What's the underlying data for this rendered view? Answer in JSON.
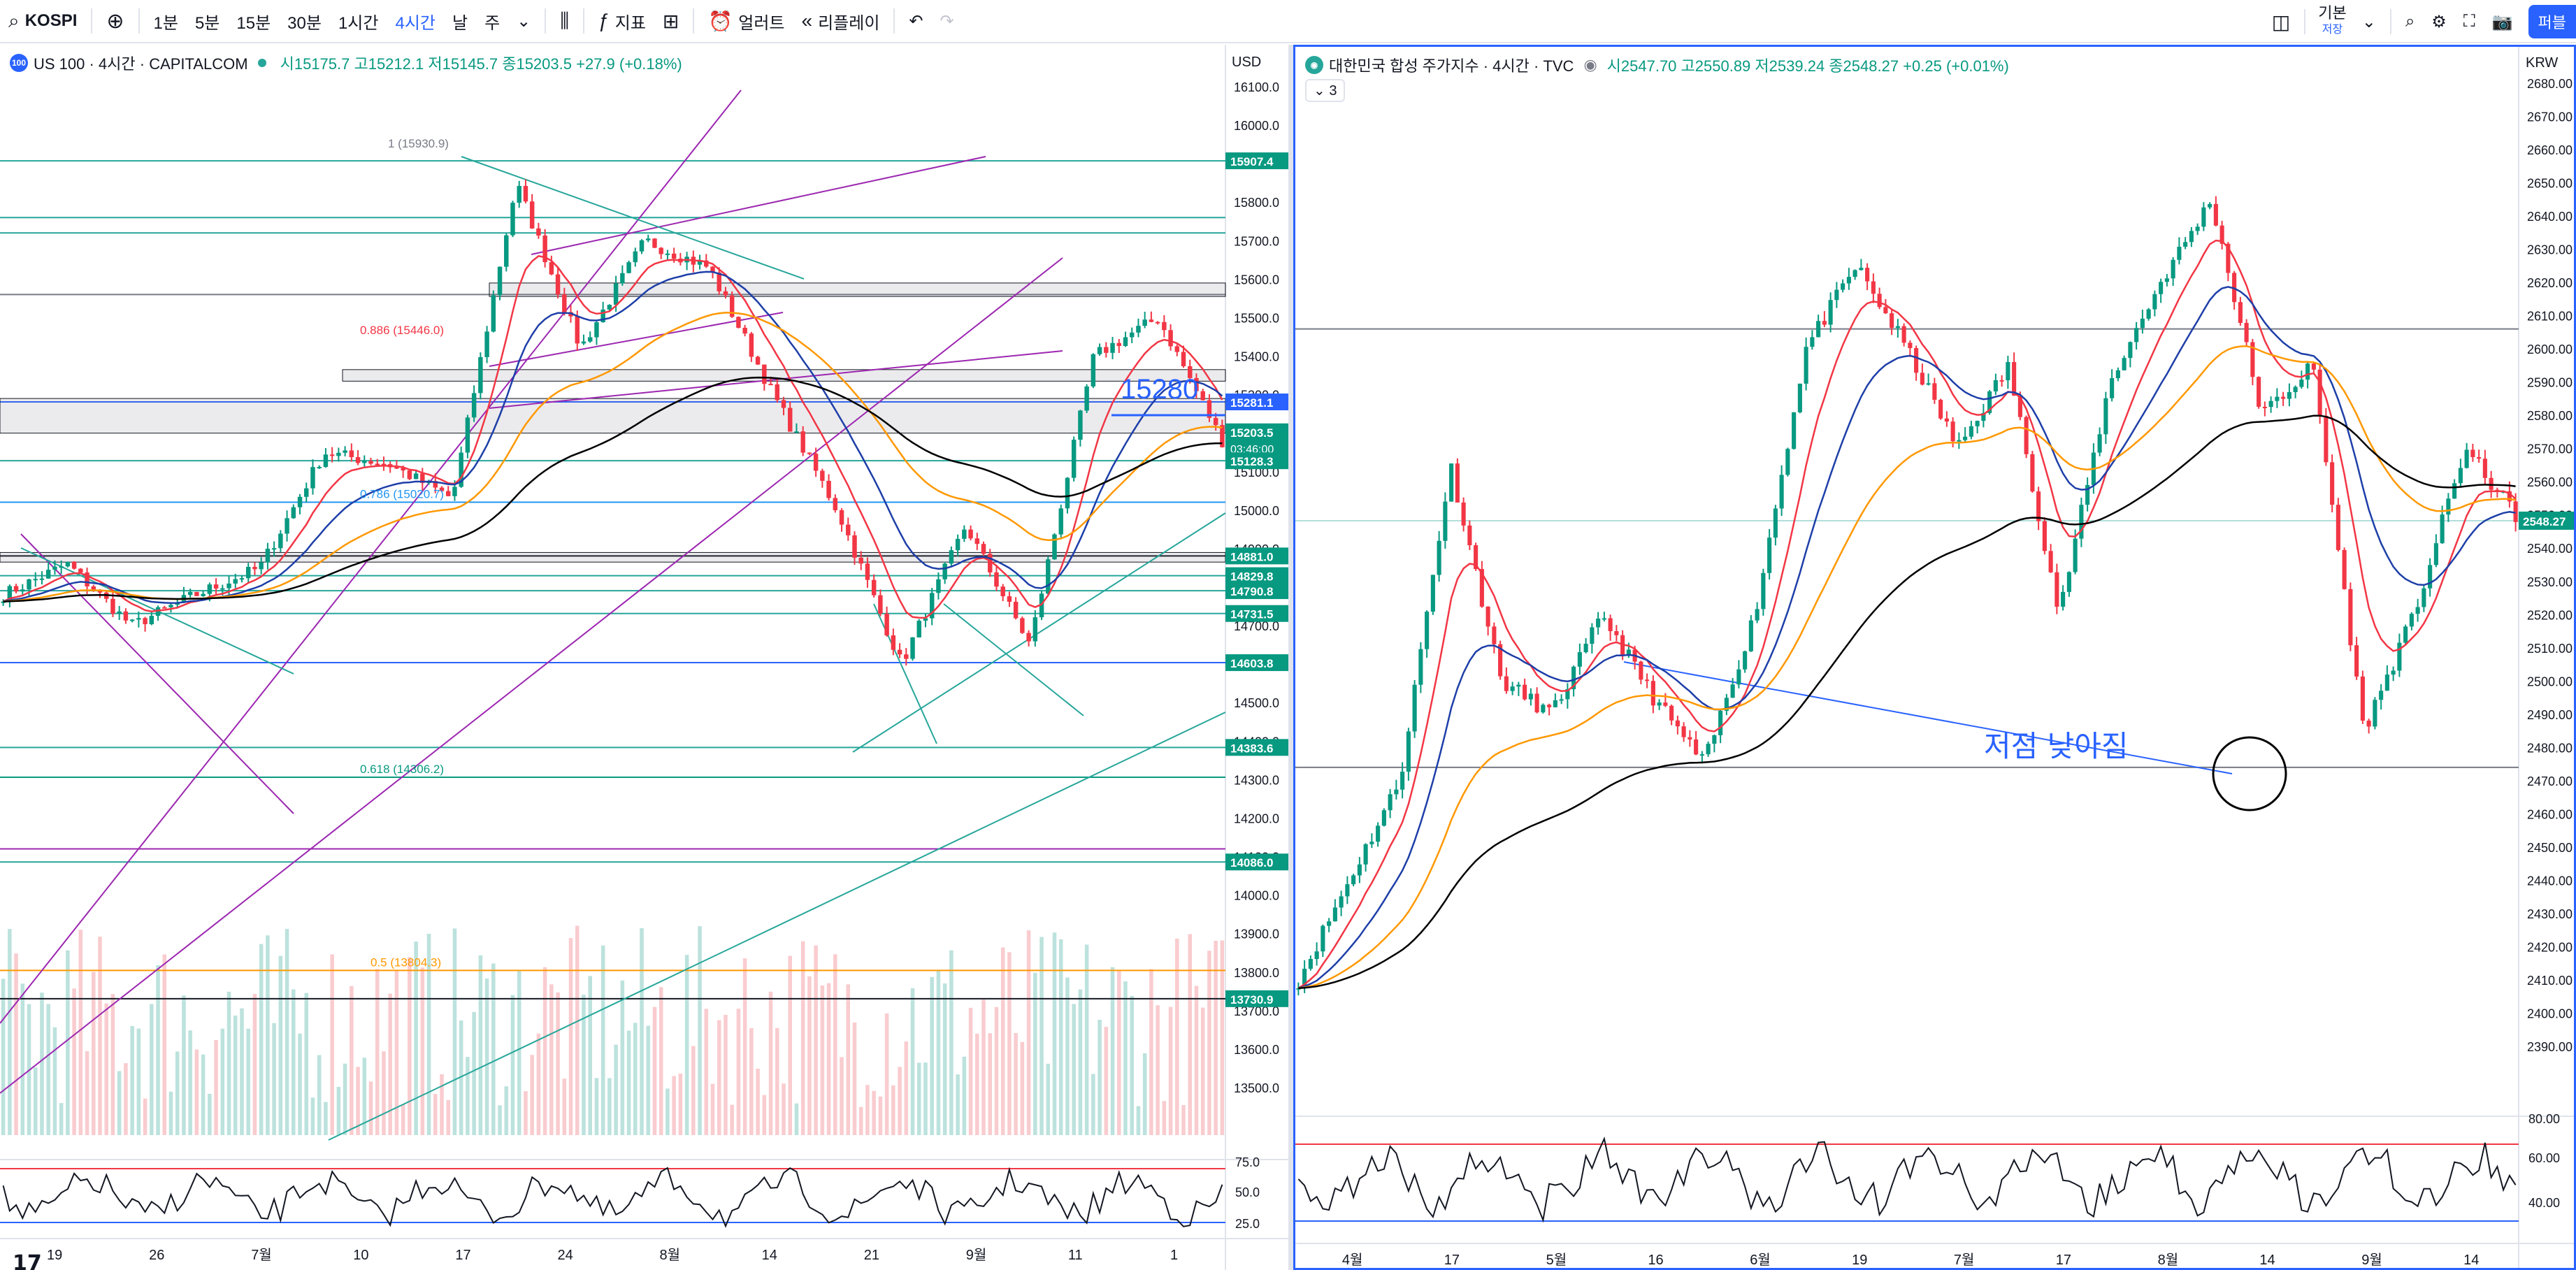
{
  "toolbar": {
    "symbol": "KOSPI",
    "intervals": [
      "1분",
      "5분",
      "15분",
      "30분",
      "1시간",
      "4시간",
      "날",
      "주"
    ],
    "active_interval": "4시간",
    "indicators_label": "지표",
    "alerts_label": "얼러트",
    "replay_label": "리플레이",
    "layout_label": "기본",
    "layout_sub": "저장",
    "publish_label": "퍼블"
  },
  "left": {
    "title": "US 100 · 4시간 · CAPITALCOM",
    "ohlc": "시15175.7 고15212.1 저15145.7 종15203.5 +27.9 (+0.18%)",
    "currency": "USD",
    "price_ticks": [
      "16100.0",
      "16000.0",
      "15900.0",
      "15800.0",
      "15700.0",
      "15600.0",
      "15500.0",
      "15400.0",
      "15300.0",
      "15200.0",
      "15100.0",
      "15000.0",
      "14900.0",
      "14800.0",
      "14700.0",
      "14600.0",
      "14500.0",
      "14400.0",
      "14300.0",
      "14200.0",
      "14100.0",
      "14000.0",
      "13900.0",
      "13800.0",
      "13700.0",
      "13600.0",
      "13500.0"
    ],
    "level_labels": [
      {
        "text": "15907.4",
        "price": 15907.4
      },
      {
        "text": "15281.1",
        "price": 15281.1,
        "color": "#2962ff"
      },
      {
        "text": "15203.5",
        "price": 15203.5,
        "sub": "03:46:00"
      },
      {
        "text": "15128.3",
        "price": 15128.3
      },
      {
        "text": "14881.0",
        "price": 14881.0
      },
      {
        "text": "14829.8",
        "price": 14829.8
      },
      {
        "text": "14790.8",
        "price": 14790.8
      },
      {
        "text": "14731.5",
        "price": 14731.5
      },
      {
        "text": "14603.8",
        "price": 14603.8
      },
      {
        "text": "14383.6",
        "price": 14383.6
      },
      {
        "text": "14086.0",
        "price": 14086.0
      },
      {
        "text": "13730.9",
        "price": 13730.9
      }
    ],
    "fib_labels": [
      {
        "text": "1 (15930.9)",
        "price": 15930.9,
        "color": "#787b86"
      },
      {
        "text": "0.886 (15446.0)",
        "price": 15446.0,
        "color": "#f23645"
      },
      {
        "text": "0.786 (15020.7)",
        "price": 15020.7,
        "color": "#2196f3"
      },
      {
        "text": "0.618 (14306.2)",
        "price": 14306.2,
        "color": "#089981"
      },
      {
        "text": "0.5 (13804.3)",
        "price": 13804.3,
        "color": "#ff9800"
      }
    ],
    "annotation": "15280",
    "rsi_ticks": [
      "75.0",
      "50.0",
      "25.0"
    ],
    "time_labels": [
      "19",
      "26",
      "7월",
      "10",
      "17",
      "24",
      "8월",
      "14",
      "21",
      "9월",
      "11",
      "1"
    ]
  },
  "right": {
    "title": "대한민국 합성 주가지수 · 4시간 · TVC",
    "ohlc": "시2547.70 고2550.89 저2539.24 종2548.27 +0.25 (+0.01%)",
    "collapse_count": "3",
    "currency": "KRW",
    "price_ticks": [
      "2680.00",
      "2670.00",
      "2660.00",
      "2650.00",
      "2640.00",
      "2630.00",
      "2620.00",
      "2610.00",
      "2600.00",
      "2590.00",
      "2580.00",
      "2570.00",
      "2560.00",
      "2550.00",
      "2540.00",
      "2530.00",
      "2520.00",
      "2510.00",
      "2500.00",
      "2490.00",
      "2480.00",
      "2470.00",
      "2460.00",
      "2450.00",
      "2440.00",
      "2430.00",
      "2420.00",
      "2410.00",
      "2400.00",
      "2390.00"
    ],
    "last_price": "2548.27",
    "annotation": "저점 낮아짐",
    "rsi_ticks": [
      "80.00",
      "60.00",
      "40.00"
    ],
    "time_labels": [
      "4월",
      "17",
      "5월",
      "16",
      "6월",
      "19",
      "7월",
      "17",
      "8월",
      "14",
      "9월",
      "14"
    ]
  },
  "colors": {
    "up": "#089981",
    "down": "#f23645",
    "accent": "#2962ff",
    "ma_red": "#f23645",
    "ma_blue": "#1e3fa8",
    "ma_orange": "#ff9800",
    "ma_black": "#000000",
    "trend_purple": "#9c27b0",
    "trend_teal": "#26a69a"
  }
}
